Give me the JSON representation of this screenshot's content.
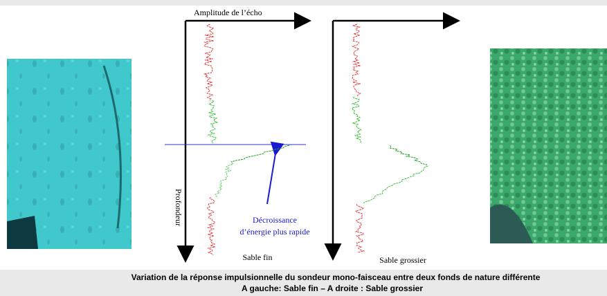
{
  "figure": {
    "left_plot": {
      "x_axis_label": "Amplitude de l’écho",
      "y_axis_label": "Profondeur",
      "label": "Sable fin",
      "annotation": [
        "Décroissance",
        "d’énergie plus rapide"
      ]
    },
    "right_plot": {
      "label": "Sable grossier"
    },
    "caption": [
      "Variation de la réponse impulsionnelle du sondeur mono-faisceau entre deux fonds de nature différente",
      "A gauche: Sable fin – A droite : Sable grossier"
    ]
  }
}
